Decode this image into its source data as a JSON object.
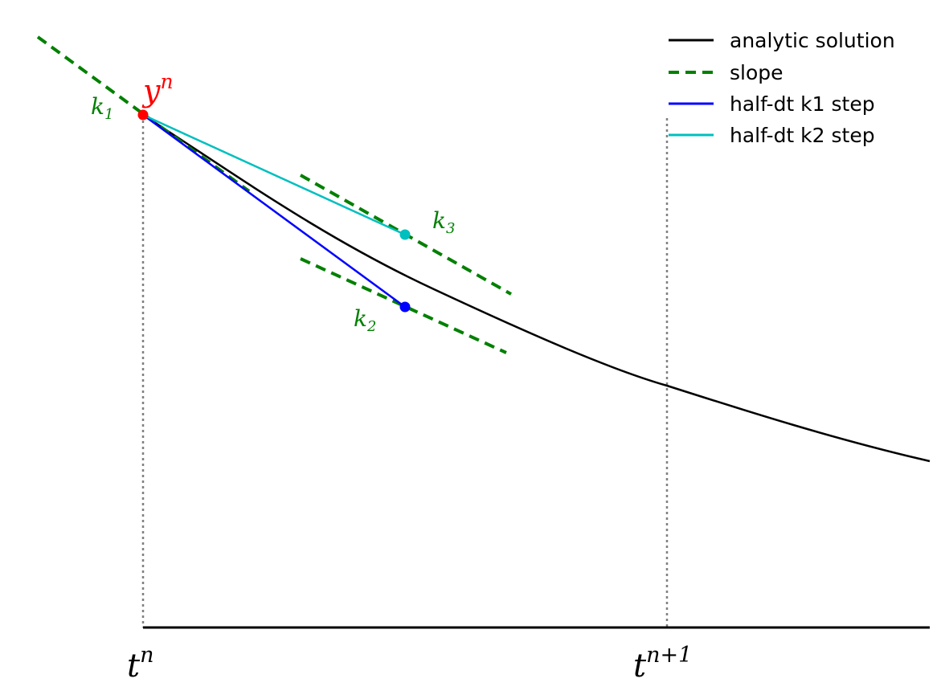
{
  "colors": {
    "analytic": "#000000",
    "slope": "#008000",
    "k1_step": "#0000ff",
    "k2_step": "#00bfbf",
    "start_point": "#ff0000",
    "guide": "#808080",
    "axis": "#000000"
  },
  "labels": {
    "yn": {
      "base": "y",
      "sup": "n"
    },
    "tn": {
      "base": "t",
      "sup": "n"
    },
    "tn1": {
      "base": "t",
      "sup": "n+1"
    },
    "k1": {
      "base": "k",
      "sub": "1"
    },
    "k2": {
      "base": "k",
      "sub": "2"
    },
    "k3": {
      "base": "k",
      "sub": "3"
    }
  },
  "legend": {
    "placement": "top-right",
    "items": [
      {
        "label": "analytic solution",
        "color": "#000000",
        "style": "solid"
      },
      {
        "label": "slope",
        "color": "#008000",
        "style": "dashed"
      },
      {
        "label": "half-dt k1 step",
        "color": "#0000ff",
        "style": "solid"
      },
      {
        "label": "half-dt k2 step",
        "color": "#00bfbf",
        "style": "solid"
      }
    ]
  }
}
